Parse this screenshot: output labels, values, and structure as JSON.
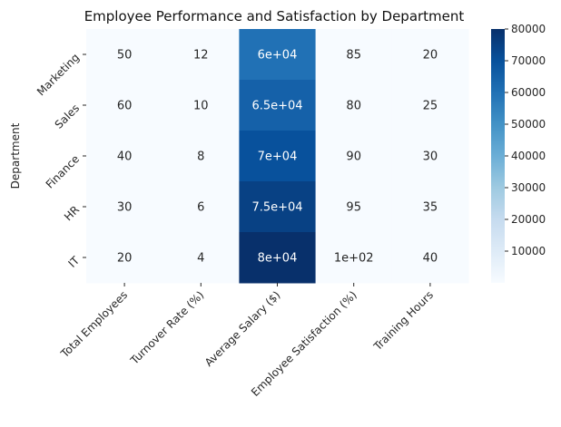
{
  "chart_data": {
    "type": "heatmap",
    "title": "Employee Performance and Satisfaction by Department",
    "ylabel": "Department",
    "xlabel": "",
    "rows": [
      "Marketing",
      "Sales",
      "Finance",
      "HR",
      "IT"
    ],
    "columns": [
      "Total Employees",
      "Turnover Rate (%)",
      "Average Salary ($)",
      "Employee Satisfaction (%)",
      "Training Hours"
    ],
    "values": [
      [
        50,
        12,
        60000,
        85,
        20
      ],
      [
        60,
        10,
        65000,
        80,
        25
      ],
      [
        40,
        8,
        70000,
        90,
        30
      ],
      [
        30,
        6,
        75000,
        95,
        35
      ],
      [
        20,
        4,
        80000,
        100,
        40
      ]
    ],
    "annotations": [
      [
        "50",
        "12",
        "6e+04",
        "85",
        "20"
      ],
      [
        "60",
        "10",
        "6.5e+04",
        "80",
        "25"
      ],
      [
        "40",
        "8",
        "7e+04",
        "90",
        "30"
      ],
      [
        "30",
        "6",
        "7.5e+04",
        "95",
        "35"
      ],
      [
        "20",
        "4",
        "8e+04",
        "1e+02",
        "40"
      ]
    ],
    "colormap": "Blues",
    "colorbar": {
      "range": [
        4,
        80000
      ],
      "ticks": [
        10000,
        20000,
        30000,
        40000,
        50000,
        60000,
        70000,
        80000
      ],
      "tick_labels": [
        "10000",
        "20000",
        "30000",
        "40000",
        "50000",
        "60000",
        "70000",
        "80000"
      ]
    }
  }
}
